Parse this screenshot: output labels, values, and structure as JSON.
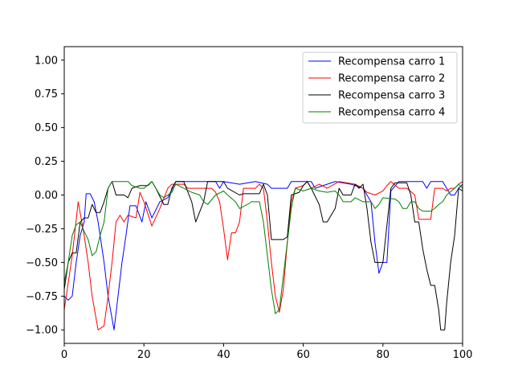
{
  "chart_data": {
    "type": "line",
    "title": "",
    "xlabel": "",
    "ylabel": "",
    "xlim": [
      0,
      100
    ],
    "ylim": [
      -1.1,
      1.1
    ],
    "xticks": [
      0,
      20,
      40,
      60,
      80,
      100
    ],
    "xtick_labels": [
      "0",
      "20",
      "40",
      "60",
      "80",
      "100"
    ],
    "yticks": [
      -1.0,
      -0.75,
      -0.5,
      -0.25,
      0.0,
      0.25,
      0.5,
      0.75,
      1.0
    ],
    "ytick_labels": [
      "−1.00",
      "−0.75",
      "−0.50",
      "−0.25",
      "0.00",
      "0.25",
      "0.50",
      "0.75",
      "1.00"
    ],
    "grid": false,
    "legend_position": "top-right",
    "series": [
      {
        "name": "Recompensa carro 1",
        "color": "#0000ff",
        "points": [
          [
            0,
            -0.75
          ],
          [
            1,
            -0.78
          ],
          [
            2,
            -0.75
          ],
          [
            3,
            -0.5
          ],
          [
            4,
            -0.3
          ],
          [
            5,
            -0.2
          ],
          [
            5.5,
            0.01
          ],
          [
            6.5,
            0.01
          ],
          [
            7.5,
            -0.05
          ],
          [
            8.5,
            -0.2
          ],
          [
            10,
            -0.5
          ],
          [
            11,
            -0.75
          ],
          [
            12.5,
            -1.0
          ],
          [
            13.5,
            -0.75
          ],
          [
            14.5,
            -0.5
          ],
          [
            15.5,
            -0.3
          ],
          [
            16.5,
            -0.08
          ],
          [
            18,
            -0.08
          ],
          [
            19.5,
            -0.2
          ],
          [
            20.5,
            -0.05
          ],
          [
            22,
            -0.17
          ],
          [
            24,
            -0.05
          ],
          [
            26,
            -0.02
          ],
          [
            28,
            0.1
          ],
          [
            38,
            0.1
          ],
          [
            39,
            0.05
          ],
          [
            40,
            0.1
          ],
          [
            44,
            0.08
          ],
          [
            48,
            0.1
          ],
          [
            51,
            0.08
          ],
          [
            52,
            0.05
          ],
          [
            56,
            0.05
          ],
          [
            57,
            0.1
          ],
          [
            62,
            0.1
          ],
          [
            63,
            0.05
          ],
          [
            68,
            0.1
          ],
          [
            72,
            0.08
          ],
          [
            75,
            0.05
          ],
          [
            77,
            -0.05
          ],
          [
            78,
            -0.35
          ],
          [
            79,
            -0.58
          ],
          [
            80,
            -0.5
          ],
          [
            81,
            -0.5
          ],
          [
            82,
            0.03
          ],
          [
            84,
            0.1
          ],
          [
            90,
            0.1
          ],
          [
            91,
            0.05
          ],
          [
            92,
            0.1
          ],
          [
            95,
            0.1
          ],
          [
            96,
            0.05
          ],
          [
            97,
            0.0
          ],
          [
            98,
            0.0
          ],
          [
            99,
            0.05
          ],
          [
            100,
            0.08
          ]
        ]
      },
      {
        "name": "Recompensa carro 2",
        "color": "#ff0000",
        "points": [
          [
            0,
            -0.85
          ],
          [
            1,
            -0.65
          ],
          [
            2,
            -0.45
          ],
          [
            3.5,
            -0.05
          ],
          [
            5,
            -0.3
          ],
          [
            6,
            -0.5
          ],
          [
            7,
            -0.75
          ],
          [
            8.5,
            -1.0
          ],
          [
            10,
            -0.97
          ],
          [
            11,
            -0.75
          ],
          [
            12,
            -0.5
          ],
          [
            13,
            -0.2
          ],
          [
            14,
            -0.15
          ],
          [
            15,
            -0.2
          ],
          [
            16,
            -0.15
          ],
          [
            18,
            -0.17
          ],
          [
            19,
            0.02
          ],
          [
            20,
            -0.05
          ],
          [
            22,
            -0.23
          ],
          [
            24,
            -0.1
          ],
          [
            26,
            0.05
          ],
          [
            27,
            0.08
          ],
          [
            30,
            0.08
          ],
          [
            31,
            0.05
          ],
          [
            37,
            0.05
          ],
          [
            38,
            0.02
          ],
          [
            39,
            -0.05
          ],
          [
            40,
            -0.25
          ],
          [
            41,
            -0.48
          ],
          [
            42,
            -0.28
          ],
          [
            43,
            -0.28
          ],
          [
            44,
            -0.2
          ],
          [
            45,
            0.05
          ],
          [
            48,
            0.05
          ],
          [
            49,
            0.08
          ],
          [
            50,
            0.05
          ],
          [
            51,
            -0.2
          ],
          [
            52,
            -0.5
          ],
          [
            53,
            -0.75
          ],
          [
            54,
            -0.87
          ],
          [
            55,
            -0.7
          ],
          [
            56,
            -0.35
          ],
          [
            57,
            -0.05
          ],
          [
            58,
            0.05
          ],
          [
            60,
            0.07
          ],
          [
            61,
            0.1
          ],
          [
            62,
            0.05
          ],
          [
            64,
            0.08
          ],
          [
            66,
            0.05
          ],
          [
            69,
            0.1
          ],
          [
            73,
            0.08
          ],
          [
            75,
            0.05
          ],
          [
            76,
            0.02
          ],
          [
            78,
            0.0
          ],
          [
            80,
            0.03
          ],
          [
            81,
            0.07
          ],
          [
            82,
            0.1
          ],
          [
            84,
            0.05
          ],
          [
            86,
            0.05
          ],
          [
            88,
            0.0
          ],
          [
            89,
            -0.18
          ],
          [
            91,
            -0.18
          ],
          [
            92,
            -0.18
          ],
          [
            93,
            0.05
          ],
          [
            95,
            0.05
          ],
          [
            96,
            0.03
          ],
          [
            97,
            0.05
          ],
          [
            98,
            0.05
          ],
          [
            99,
            0.08
          ],
          [
            100,
            0.1
          ]
        ]
      },
      {
        "name": "Recompensa carro 3",
        "color": "#000000",
        "points": [
          [
            0,
            -0.7
          ],
          [
            1,
            -0.5
          ],
          [
            2,
            -0.43
          ],
          [
            3,
            -0.43
          ],
          [
            4,
            -0.2
          ],
          [
            5,
            -0.17
          ],
          [
            6,
            -0.17
          ],
          [
            7,
            -0.07
          ],
          [
            8,
            -0.13
          ],
          [
            9,
            -0.13
          ],
          [
            10,
            -0.05
          ],
          [
            11,
            0.05
          ],
          [
            12,
            0.1
          ],
          [
            13,
            0.0
          ],
          [
            15,
            0.0
          ],
          [
            16,
            -0.02
          ],
          [
            17,
            0.05
          ],
          [
            19,
            0.07
          ],
          [
            21,
            0.07
          ],
          [
            22,
            0.1
          ],
          [
            23,
            0.05
          ],
          [
            25,
            -0.07
          ],
          [
            26,
            -0.07
          ],
          [
            27,
            0.05
          ],
          [
            28,
            0.1
          ],
          [
            30,
            0.1
          ],
          [
            32,
            -0.05
          ],
          [
            33,
            -0.2
          ],
          [
            35,
            -0.05
          ],
          [
            36,
            0.1
          ],
          [
            40,
            0.1
          ],
          [
            41,
            0.05
          ],
          [
            44,
            0.0
          ],
          [
            45,
            0.01
          ],
          [
            49,
            0.01
          ],
          [
            50,
            0.08
          ],
          [
            51,
            0.0
          ],
          [
            52,
            -0.33
          ],
          [
            55,
            -0.33
          ],
          [
            56,
            -0.31
          ],
          [
            57,
            0.0
          ],
          [
            59,
            0.02
          ],
          [
            60,
            0.07
          ],
          [
            61,
            0.1
          ],
          [
            62,
            0.05
          ],
          [
            64,
            -0.07
          ],
          [
            65,
            -0.2
          ],
          [
            66,
            -0.2
          ],
          [
            68,
            -0.1
          ],
          [
            69,
            0.05
          ],
          [
            70,
            0.0
          ],
          [
            72,
            0.0
          ],
          [
            73,
            0.08
          ],
          [
            74,
            0.05
          ],
          [
            75,
            0.08
          ],
          [
            76,
            -0.1
          ],
          [
            77,
            -0.35
          ],
          [
            78,
            -0.5
          ],
          [
            80,
            -0.5
          ],
          [
            82,
            0.05
          ],
          [
            83,
            0.09
          ],
          [
            86,
            0.09
          ],
          [
            87,
            0.0
          ],
          [
            88,
            -0.2
          ],
          [
            89,
            -0.2
          ],
          [
            90,
            -0.4
          ],
          [
            91,
            -0.55
          ],
          [
            92,
            -0.67
          ],
          [
            93,
            -0.67
          ],
          [
            94,
            -0.85
          ],
          [
            94.5,
            -1.0
          ],
          [
            95.5,
            -1.0
          ],
          [
            96,
            -0.8
          ],
          [
            97,
            -0.5
          ],
          [
            98,
            -0.3
          ],
          [
            99,
            0.05
          ],
          [
            100,
            0.03
          ]
        ]
      },
      {
        "name": "Recompensa carro 4",
        "color": "#008000",
        "points": [
          [
            0,
            -0.65
          ],
          [
            1,
            -0.5
          ],
          [
            2,
            -0.3
          ],
          [
            3,
            -0.22
          ],
          [
            4,
            -0.2
          ],
          [
            5,
            -0.27
          ],
          [
            6,
            -0.33
          ],
          [
            7,
            -0.45
          ],
          [
            8,
            -0.42
          ],
          [
            9,
            -0.3
          ],
          [
            10,
            -0.2
          ],
          [
            11,
            0.05
          ],
          [
            12,
            0.1
          ],
          [
            16,
            0.1
          ],
          [
            17,
            0.07
          ],
          [
            19,
            0.05
          ],
          [
            20,
            0.05
          ],
          [
            22,
            0.1
          ],
          [
            23,
            0.05
          ],
          [
            24,
            0.0
          ],
          [
            25,
            -0.02
          ],
          [
            27,
            0.02
          ],
          [
            28,
            0.08
          ],
          [
            30,
            0.05
          ],
          [
            32,
            0.02
          ],
          [
            34,
            0.0
          ],
          [
            35,
            -0.05
          ],
          [
            36,
            -0.07
          ],
          [
            38,
            0.0
          ],
          [
            40,
            0.03
          ],
          [
            41,
            0.0
          ],
          [
            43,
            -0.05
          ],
          [
            44,
            -0.1
          ],
          [
            46,
            -0.07
          ],
          [
            47,
            -0.05
          ],
          [
            49,
            -0.05
          ],
          [
            50,
            -0.2
          ],
          [
            51,
            -0.45
          ],
          [
            52,
            -0.7
          ],
          [
            53,
            -0.88
          ],
          [
            54,
            -0.85
          ],
          [
            55,
            -0.6
          ],
          [
            56,
            -0.35
          ],
          [
            57,
            -0.1
          ],
          [
            58,
            0.05
          ],
          [
            60,
            0.03
          ],
          [
            62,
            0.05
          ],
          [
            64,
            0.03
          ],
          [
            66,
            0.02
          ],
          [
            68,
            0.03
          ],
          [
            69,
            0.0
          ],
          [
            70,
            -0.05
          ],
          [
            72,
            -0.05
          ],
          [
            73,
            -0.02
          ],
          [
            75,
            -0.05
          ],
          [
            77,
            -0.05
          ],
          [
            78,
            -0.1
          ],
          [
            79,
            -0.07
          ],
          [
            80,
            -0.02
          ],
          [
            83,
            -0.03
          ],
          [
            84,
            -0.05
          ],
          [
            85,
            -0.1
          ],
          [
            86,
            -0.1
          ],
          [
            87,
            -0.05
          ],
          [
            88,
            -0.05
          ],
          [
            89,
            -0.1
          ],
          [
            90,
            -0.12
          ],
          [
            92,
            -0.12
          ],
          [
            93,
            -0.1
          ],
          [
            94,
            -0.07
          ],
          [
            95,
            -0.05
          ],
          [
            96,
            0.0
          ],
          [
            98,
            0.05
          ],
          [
            99,
            0.08
          ],
          [
            100,
            0.05
          ]
        ]
      }
    ]
  }
}
